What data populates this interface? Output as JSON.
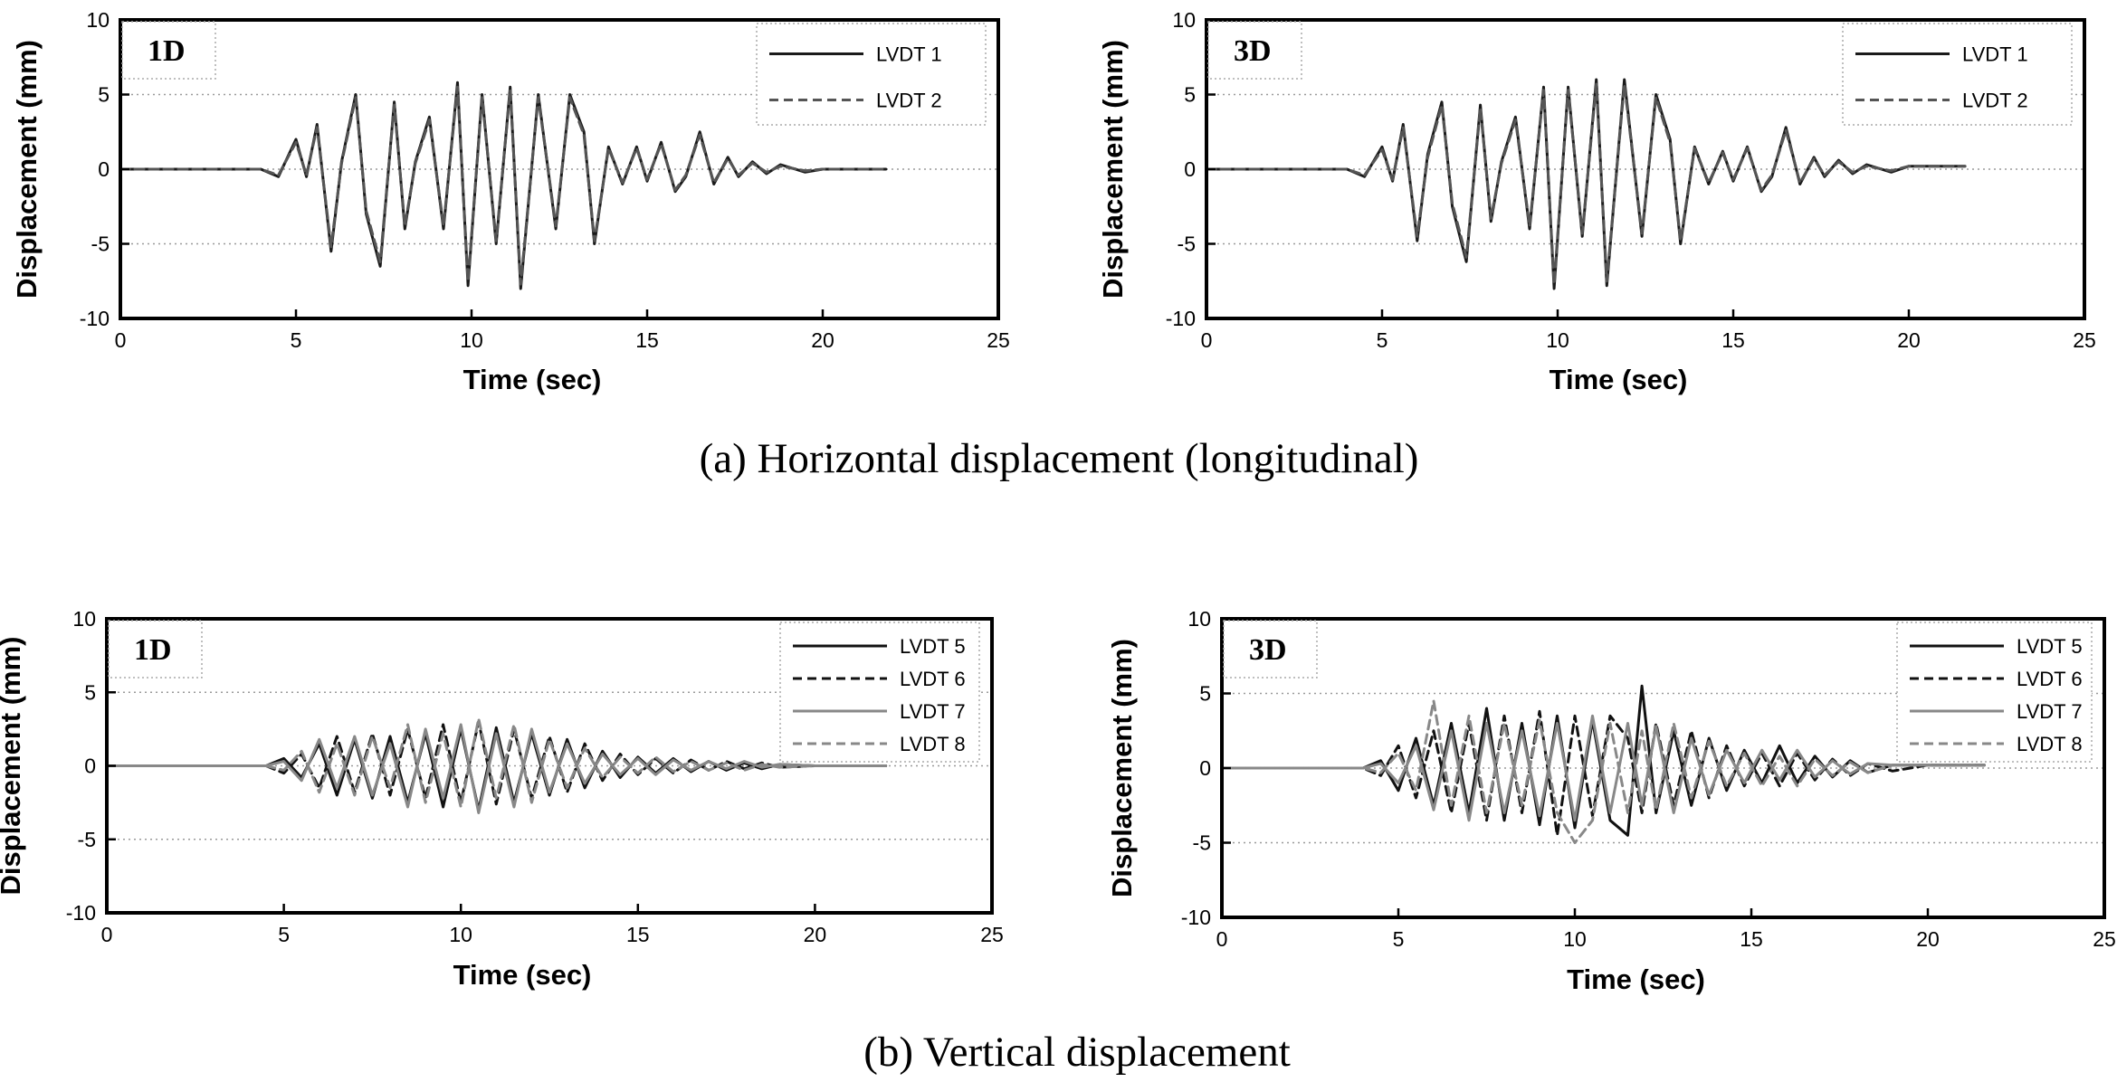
{
  "captions": {
    "a": "(a)  Horizontal displacement (longitudinal)",
    "b": "(b) Vertical displacement"
  },
  "chart_data": [
    {
      "type": "line",
      "panel": "1D",
      "xlabel": "Time (sec)",
      "ylabel": "Displacement (mm)",
      "xlim": [
        0,
        25
      ],
      "ylim": [
        -10,
        10
      ],
      "xticks": [
        0,
        5,
        10,
        15,
        20,
        25
      ],
      "yticks": [
        -10,
        -5,
        0,
        5,
        10
      ],
      "grid": "horizontal dotted at -5, 0, 5",
      "legend_position": "top-right",
      "series": [
        {
          "name": "LVDT 1",
          "style": "solid",
          "color": "#1a1a1a",
          "x": [
            0,
            4.0,
            4.5,
            5.0,
            5.3,
            5.6,
            6.0,
            6.3,
            6.7,
            7.0,
            7.4,
            7.8,
            8.1,
            8.4,
            8.8,
            9.2,
            9.6,
            9.9,
            10.3,
            10.7,
            11.1,
            11.4,
            11.9,
            12.4,
            12.8,
            13.2,
            13.5,
            13.9,
            14.3,
            14.7,
            15.0,
            15.4,
            15.8,
            16.1,
            16.5,
            16.9,
            17.3,
            17.6,
            18.0,
            18.4,
            18.8,
            19.5,
            20.0,
            21.8
          ],
          "y": [
            0,
            0,
            -0.5,
            2.0,
            -0.5,
            3.0,
            -5.5,
            0.5,
            5.0,
            -3.0,
            -6.5,
            4.5,
            -4.0,
            0.5,
            3.5,
            -4.0,
            5.8,
            -7.8,
            5.0,
            -5.0,
            5.5,
            -8.0,
            5.0,
            -4.0,
            5.0,
            2.5,
            -5.0,
            1.5,
            -1.0,
            1.5,
            -0.8,
            1.8,
            -1.5,
            -0.5,
            2.5,
            -1.0,
            0.8,
            -0.5,
            0.5,
            -0.3,
            0.3,
            -0.2,
            0,
            0
          ]
        },
        {
          "name": "LVDT 2",
          "style": "dashed",
          "color": "#555555",
          "x": [
            0,
            4.0,
            4.5,
            5.0,
            5.3,
            5.6,
            6.0,
            6.3,
            6.7,
            7.0,
            7.4,
            7.8,
            8.1,
            8.4,
            8.8,
            9.2,
            9.6,
            9.9,
            10.3,
            10.7,
            11.1,
            11.4,
            11.9,
            12.4,
            12.8,
            13.2,
            13.5,
            13.9,
            14.3,
            14.7,
            15.0,
            15.4,
            15.8,
            16.1,
            16.5,
            16.9,
            17.3,
            17.6,
            18.0,
            18.4,
            18.8,
            19.5,
            20.0,
            21.8
          ],
          "y": [
            0,
            0,
            -0.4,
            1.8,
            -0.4,
            2.8,
            -5.2,
            0.4,
            4.8,
            -2.8,
            -6.2,
            4.3,
            -3.8,
            0.4,
            3.3,
            -3.8,
            5.5,
            -7.5,
            4.8,
            -4.8,
            5.3,
            -7.7,
            4.8,
            -3.8,
            4.8,
            2.3,
            -4.8,
            1.4,
            -0.9,
            1.4,
            -0.7,
            1.7,
            -1.4,
            -0.4,
            2.3,
            -0.9,
            0.7,
            -0.4,
            0.4,
            -0.2,
            0.2,
            -0.1,
            0,
            0
          ]
        }
      ]
    },
    {
      "type": "line",
      "panel": "3D",
      "xlabel": "Time (sec)",
      "ylabel": "Displacement (mm)",
      "xlim": [
        0,
        25
      ],
      "ylim": [
        -10,
        10
      ],
      "xticks": [
        0,
        5,
        10,
        15,
        20,
        25
      ],
      "yticks": [
        -10,
        -5,
        0,
        5,
        10
      ],
      "grid": "horizontal dotted at -5, 0, 5",
      "legend_position": "top-right",
      "series": [
        {
          "name": "LVDT 1",
          "style": "solid",
          "color": "#1a1a1a",
          "x": [
            0,
            4.0,
            4.5,
            5.0,
            5.3,
            5.6,
            6.0,
            6.3,
            6.7,
            7.0,
            7.4,
            7.8,
            8.1,
            8.4,
            8.8,
            9.2,
            9.6,
            9.9,
            10.3,
            10.7,
            11.1,
            11.4,
            11.9,
            12.4,
            12.8,
            13.2,
            13.5,
            13.9,
            14.3,
            14.7,
            15.0,
            15.4,
            15.8,
            16.1,
            16.5,
            16.9,
            17.3,
            17.6,
            18.0,
            18.4,
            18.8,
            19.5,
            20.0,
            21.6
          ],
          "y": [
            0,
            0,
            -0.5,
            1.5,
            -0.8,
            3.0,
            -4.8,
            1.0,
            4.5,
            -2.5,
            -6.2,
            4.3,
            -3.5,
            0.5,
            3.5,
            -4.0,
            5.5,
            -8.0,
            5.5,
            -4.5,
            6.0,
            -7.8,
            6.0,
            -4.5,
            5.0,
            2.0,
            -5.0,
            1.5,
            -1.0,
            1.2,
            -0.8,
            1.5,
            -1.5,
            -0.5,
            2.8,
            -1.0,
            0.8,
            -0.5,
            0.6,
            -0.3,
            0.3,
            -0.2,
            0.2,
            0.2
          ]
        },
        {
          "name": "LVDT 2",
          "style": "dashed",
          "color": "#555555",
          "x": [
            0,
            4.0,
            4.5,
            5.0,
            5.3,
            5.6,
            6.0,
            6.3,
            6.7,
            7.0,
            7.4,
            7.8,
            8.1,
            8.4,
            8.8,
            9.2,
            9.6,
            9.9,
            10.3,
            10.7,
            11.1,
            11.4,
            11.9,
            12.4,
            12.8,
            13.2,
            13.5,
            13.9,
            14.3,
            14.7,
            15.0,
            15.4,
            15.8,
            16.1,
            16.5,
            16.9,
            17.3,
            17.6,
            18.0,
            18.4,
            18.8,
            19.5,
            20.0,
            21.6
          ],
          "y": [
            0,
            0,
            -0.4,
            1.3,
            -0.7,
            2.8,
            -4.5,
            0.8,
            4.3,
            -2.3,
            -5.9,
            4.1,
            -3.3,
            0.4,
            3.3,
            -3.8,
            5.3,
            -7.7,
            5.3,
            -4.3,
            5.7,
            -7.5,
            5.7,
            -4.3,
            4.8,
            1.8,
            -4.8,
            1.4,
            -0.9,
            1.1,
            -0.7,
            1.4,
            -1.4,
            -0.4,
            2.6,
            -0.9,
            0.7,
            -0.4,
            0.5,
            -0.2,
            0.2,
            -0.1,
            0.2,
            0.2
          ]
        }
      ]
    },
    {
      "type": "line",
      "panel": "1D",
      "xlabel": "Time (sec)",
      "ylabel": "Displacement (mm)",
      "xlim": [
        0,
        25
      ],
      "ylim": [
        -10,
        10
      ],
      "xticks": [
        0,
        5,
        10,
        15,
        20,
        25
      ],
      "yticks": [
        -10,
        -5,
        0,
        5,
        10
      ],
      "grid": "horizontal dotted at -5, 0, 5",
      "legend_position": "top-right",
      "series": [
        {
          "name": "LVDT 5",
          "style": "solid",
          "color": "#111111",
          "x": [
            0,
            4.5,
            5.0,
            5.5,
            6.0,
            6.5,
            7.0,
            7.5,
            8.0,
            8.5,
            9.0,
            9.5,
            10.0,
            10.5,
            11.0,
            11.5,
            12.0,
            12.5,
            13.0,
            13.5,
            14.0,
            14.5,
            15.0,
            15.5,
            16.0,
            16.5,
            17.0,
            17.5,
            18.0,
            18.5,
            19.0,
            20.0,
            22.0
          ],
          "y": [
            0,
            0,
            0.5,
            -0.8,
            1.5,
            -2.0,
            1.8,
            -2.2,
            2.0,
            -2.5,
            2.2,
            -2.8,
            2.5,
            -3.0,
            2.6,
            -2.5,
            2.2,
            -2.0,
            1.8,
            -1.5,
            1.0,
            -0.8,
            0.6,
            -0.5,
            0.5,
            -0.4,
            0.3,
            -0.3,
            0.2,
            -0.2,
            0.1,
            0,
            0
          ]
        },
        {
          "name": "LVDT 6",
          "style": "dashed",
          "color": "#111111",
          "x": [
            0,
            4.5,
            5.0,
            5.5,
            6.0,
            6.5,
            7.0,
            7.5,
            8.0,
            8.5,
            9.0,
            9.5,
            10.0,
            10.5,
            11.0,
            11.5,
            12.0,
            12.5,
            13.0,
            13.5,
            14.0,
            14.5,
            15.0,
            15.5,
            16.0,
            16.5,
            17.0,
            17.5,
            18.0,
            18.5,
            19.0,
            20.0,
            22.0
          ],
          "y": [
            0,
            0,
            -0.5,
            0.8,
            -1.5,
            2.0,
            -1.8,
            2.2,
            -2.0,
            2.5,
            -2.2,
            2.8,
            -2.5,
            3.0,
            -2.6,
            2.5,
            -2.2,
            2.0,
            -1.8,
            1.5,
            -1.0,
            0.8,
            -0.6,
            0.5,
            -0.5,
            0.4,
            -0.3,
            0.3,
            -0.2,
            0.2,
            -0.1,
            0,
            0
          ]
        },
        {
          "name": "LVDT 7",
          "style": "solid",
          "color": "#888888",
          "x": [
            0,
            4.5,
            5.0,
            5.5,
            6.0,
            6.5,
            7.0,
            7.5,
            8.0,
            8.5,
            9.0,
            9.5,
            10.0,
            10.5,
            11.0,
            11.5,
            12.0,
            12.5,
            13.0,
            13.5,
            14.0,
            14.5,
            15.0,
            15.5,
            16.0,
            16.5,
            17.0,
            17.5,
            18.0,
            18.5,
            19.0,
            20.0,
            22.0
          ],
          "y": [
            0,
            0,
            0.3,
            -1.0,
            1.8,
            -1.5,
            2.0,
            -2.0,
            1.5,
            -2.8,
            2.5,
            -2.2,
            2.8,
            -3.2,
            2.2,
            -2.8,
            2.5,
            -1.8,
            1.5,
            -1.2,
            0.8,
            -0.6,
            0.5,
            -0.6,
            0.4,
            -0.3,
            0.3,
            -0.2,
            0.3,
            -0.1,
            0.1,
            0,
            0
          ]
        },
        {
          "name": "LVDT 8",
          "style": "dashed",
          "color": "#888888",
          "x": [
            0,
            4.5,
            5.0,
            5.5,
            6.0,
            6.5,
            7.0,
            7.5,
            8.0,
            8.5,
            9.0,
            9.5,
            10.0,
            10.5,
            11.0,
            11.5,
            12.0,
            12.5,
            13.0,
            13.5,
            14.0,
            14.5,
            15.0,
            15.5,
            16.0,
            16.5,
            17.0,
            17.5,
            18.0,
            18.5,
            19.0,
            20.0,
            22.0
          ],
          "y": [
            0,
            0,
            -0.3,
            1.0,
            -1.8,
            1.5,
            -2.0,
            2.0,
            -1.5,
            2.8,
            -2.5,
            2.2,
            -2.8,
            3.2,
            -2.2,
            2.8,
            -2.5,
            1.8,
            -1.5,
            1.2,
            -0.8,
            0.6,
            -0.5,
            0.6,
            -0.4,
            0.3,
            -0.3,
            0.2,
            -0.3,
            0.1,
            -0.1,
            0,
            0
          ]
        }
      ]
    },
    {
      "type": "line",
      "panel": "3D",
      "xlabel": "Time (sec)",
      "ylabel": "Displacement (mm)",
      "xlim": [
        0,
        25
      ],
      "ylim": [
        -10,
        10
      ],
      "xticks": [
        0,
        5,
        10,
        15,
        20,
        25
      ],
      "yticks": [
        -10,
        -5,
        0,
        5,
        10
      ],
      "grid": "horizontal dotted at -5, 0, 5",
      "legend_position": "top-right",
      "series": [
        {
          "name": "LVDT 5",
          "style": "solid",
          "color": "#111111",
          "x": [
            0,
            4.0,
            4.5,
            5.0,
            5.5,
            6.0,
            6.5,
            7.0,
            7.5,
            8.0,
            8.5,
            9.0,
            9.5,
            10.0,
            10.5,
            11.0,
            11.5,
            11.9,
            12.3,
            12.8,
            13.3,
            13.8,
            14.3,
            14.8,
            15.3,
            15.8,
            16.3,
            16.8,
            17.3,
            17.8,
            18.3,
            19.0,
            20.0,
            21.6
          ],
          "y": [
            0,
            0,
            0.5,
            -1.5,
            2.0,
            -2.5,
            3.0,
            -3.0,
            4.0,
            -3.5,
            3.0,
            -3.8,
            3.5,
            -4.0,
            3.2,
            -3.5,
            -4.5,
            5.5,
            -3.0,
            2.5,
            -2.5,
            2.0,
            -1.5,
            1.2,
            -1.0,
            1.5,
            -1.0,
            0.8,
            -0.6,
            0.5,
            -0.3,
            0.2,
            0.2,
            0.2
          ]
        },
        {
          "name": "LVDT 6",
          "style": "dashed",
          "color": "#111111",
          "x": [
            0,
            4.0,
            4.5,
            5.0,
            5.5,
            6.0,
            6.5,
            7.0,
            7.5,
            8.0,
            8.5,
            9.0,
            9.5,
            10.0,
            10.5,
            11.0,
            11.5,
            11.9,
            12.3,
            12.8,
            13.3,
            13.8,
            14.3,
            14.8,
            15.3,
            15.8,
            16.3,
            16.8,
            17.3,
            17.8,
            18.3,
            19.0,
            20.0,
            21.6
          ],
          "y": [
            0,
            0,
            -0.5,
            1.5,
            -2.0,
            2.5,
            -3.0,
            3.0,
            -3.5,
            3.5,
            -3.0,
            3.8,
            -4.5,
            3.5,
            -3.2,
            3.5,
            2.0,
            -3.0,
            3.0,
            -2.5,
            2.5,
            -2.0,
            1.5,
            -1.2,
            1.0,
            -1.2,
            1.0,
            -0.8,
            0.6,
            -0.5,
            0.3,
            -0.2,
            0.2,
            0.2
          ]
        },
        {
          "name": "LVDT 7",
          "style": "solid",
          "color": "#888888",
          "x": [
            0,
            4.0,
            4.5,
            5.0,
            5.5,
            6.0,
            6.5,
            7.0,
            7.5,
            8.0,
            8.5,
            9.0,
            9.5,
            10.0,
            10.5,
            11.0,
            11.5,
            11.9,
            12.3,
            12.8,
            13.3,
            13.8,
            14.3,
            14.8,
            15.3,
            15.8,
            16.3,
            16.8,
            17.3,
            17.8,
            18.3,
            19.0,
            20.0,
            21.6
          ],
          "y": [
            0,
            0,
            0.3,
            -1.0,
            1.5,
            -2.8,
            2.5,
            -3.5,
            3.0,
            -3.0,
            2.5,
            -3.2,
            3.0,
            -3.5,
            3.5,
            -3.0,
            3.0,
            -2.5,
            2.8,
            -3.0,
            2.0,
            -1.8,
            1.2,
            -1.0,
            1.2,
            -0.8,
            1.2,
            -0.6,
            0.5,
            -0.4,
            0.3,
            0.2,
            0.2,
            0.2
          ]
        },
        {
          "name": "LVDT 8",
          "style": "dashed",
          "color": "#888888",
          "x": [
            0,
            4.0,
            4.5,
            5.0,
            5.5,
            6.0,
            6.5,
            7.0,
            7.5,
            8.0,
            8.5,
            9.0,
            9.5,
            10.0,
            10.5,
            11.0,
            11.5,
            11.9,
            12.3,
            12.8,
            13.3,
            13.8,
            14.3,
            14.8,
            15.3,
            15.8,
            16.3,
            16.8,
            17.3,
            17.8,
            18.3,
            19.0,
            20.0,
            21.6
          ],
          "y": [
            0,
            0,
            -0.3,
            1.0,
            -1.5,
            4.5,
            -2.5,
            3.5,
            -3.0,
            3.0,
            -2.5,
            3.2,
            -3.0,
            -5.0,
            -3.5,
            3.0,
            -3.0,
            2.5,
            -2.8,
            3.0,
            -2.0,
            1.8,
            -1.2,
            1.0,
            -1.2,
            0.8,
            -1.2,
            0.6,
            -0.5,
            0.4,
            -0.3,
            0.2,
            0.2,
            0.2
          ]
        }
      ]
    }
  ]
}
